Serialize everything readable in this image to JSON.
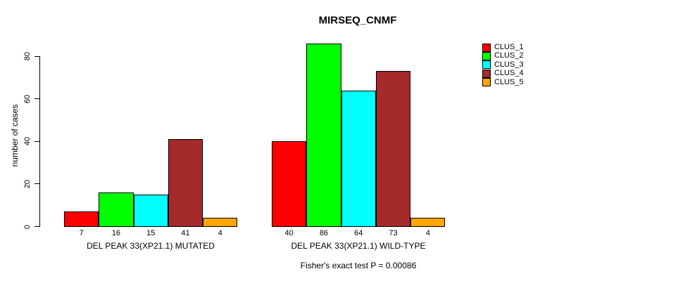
{
  "chart_data": {
    "type": "bar",
    "title": "MIRSEQ_CNMF",
    "ylabel": "number of cases",
    "xlabel": "",
    "categories": [
      "DEL PEAK 33(XP21.1) MUTATED",
      "DEL PEAK 33(XP21.1) WILD-TYPE"
    ],
    "series": [
      {
        "name": "CLUS_1",
        "color": "#FF0000",
        "values": [
          7,
          40
        ]
      },
      {
        "name": "CLUS_2",
        "color": "#00FF00",
        "values": [
          16,
          86
        ]
      },
      {
        "name": "CLUS_3",
        "color": "#00FFFF",
        "values": [
          15,
          64
        ]
      },
      {
        "name": "CLUS_4",
        "color": "#A52A2A",
        "values": [
          41,
          73
        ]
      },
      {
        "name": "CLUS_5",
        "color": "#FFA500",
        "values": [
          4,
          4
        ]
      }
    ],
    "yticks": [
      0,
      20,
      40,
      60,
      80
    ],
    "ylim": [
      0,
      86
    ],
    "grid": false,
    "legend_position": "right",
    "bar_value_labels_shown": true,
    "caption": "Fisher's exact test P = 0.00086"
  }
}
